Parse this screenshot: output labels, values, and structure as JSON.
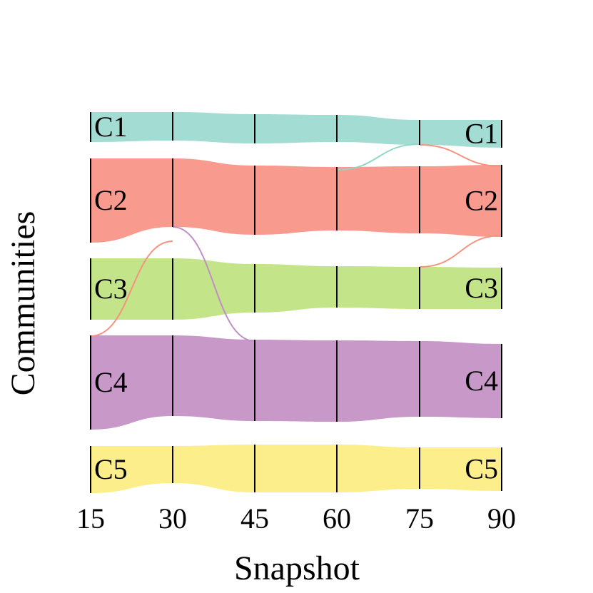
{
  "chart_data": {
    "type": "alluvial",
    "title": "",
    "xlabel": "Snapshot",
    "ylabel": "Communities",
    "snapshots": [
      15,
      30,
      45,
      60,
      75,
      90
    ],
    "communities": [
      {
        "name": "C1",
        "color": "#a3dcd3"
      },
      {
        "name": "C2",
        "color": "#f99a8e"
      },
      {
        "name": "C3",
        "color": "#c4e489"
      },
      {
        "name": "C4",
        "color": "#c898c9"
      },
      {
        "name": "C5",
        "color": "#fdee8c"
      }
    ],
    "flows": [
      {
        "from": "C3",
        "to": "C2",
        "from_snapshot": 15,
        "to_snapshot": 30,
        "color": "#f4937f"
      },
      {
        "from": "C2",
        "to": "C4",
        "from_snapshot": 30,
        "to_snapshot": 45,
        "color": "#c08fc6"
      },
      {
        "from": "C2",
        "to": "C1",
        "from_snapshot": 60,
        "to_snapshot": 75,
        "color": "#8fd7c6"
      },
      {
        "from": "C1",
        "to": "C2",
        "from_snapshot": 75,
        "to_snapshot": 90,
        "color": "#f4937f"
      },
      {
        "from": "C2",
        "to": "C3",
        "from_snapshot": 75,
        "to_snapshot": 90,
        "color": "#f4937f"
      }
    ]
  }
}
